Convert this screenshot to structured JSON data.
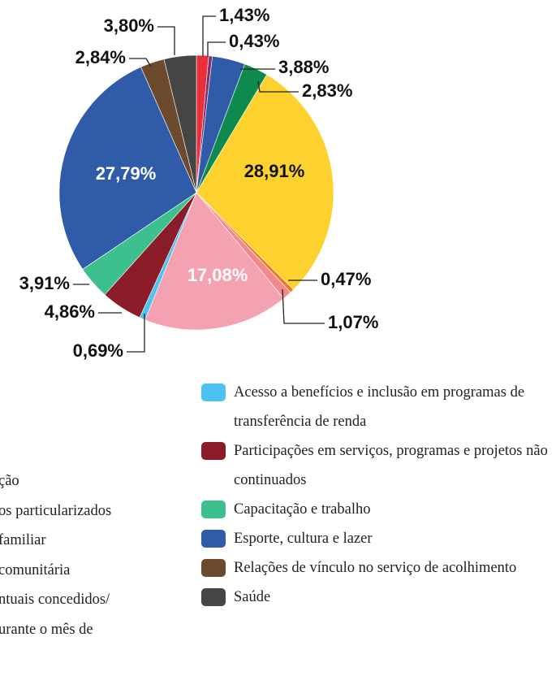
{
  "chart_data": {
    "type": "pie",
    "categories": [
      null,
      null,
      null,
      null,
      null,
      null,
      null,
      null,
      "Acesso a benefícios e inclusão em programas de transferência de renda",
      "Participações em serviços, programas e projetos não continuados",
      "Capacitação e trabalho",
      "Esporte, cultura e lazer",
      "Relações de vínculo no serviço de acolhimento",
      "Saúde"
    ],
    "values": [
      1.43,
      0.43,
      3.88,
      2.83,
      28.91,
      0.47,
      1.07,
      17.08,
      0.69,
      4.86,
      3.91,
      27.79,
      2.84,
      3.8
    ],
    "value_labels": [
      "1,43%",
      "0,43%",
      "3,88%",
      "2,83%",
      "28,91%",
      "0,47%",
      "1,07%",
      "17,08%",
      "0,69%",
      "4,86%",
      "3,91%",
      "27,79%",
      "2,84%",
      "3,80%"
    ],
    "colors": [
      "#e8303a",
      "#8a2a6b",
      "#2f5ba8",
      "#0e8a4f",
      "#fdd12e",
      "#f07a22",
      "#f28a8c",
      "#f4a1b2",
      "#4fc3ef",
      "#8b1c2a",
      "#3dbf8e",
      "#2f5ba8",
      "#6b4a2e",
      "#454545"
    ],
    "partial_legend_text": [
      "ção",
      "os particularizados",
      "familiar",
      "comunitária",
      "ntuais concedidos/",
      "urante o mês de"
    ]
  }
}
